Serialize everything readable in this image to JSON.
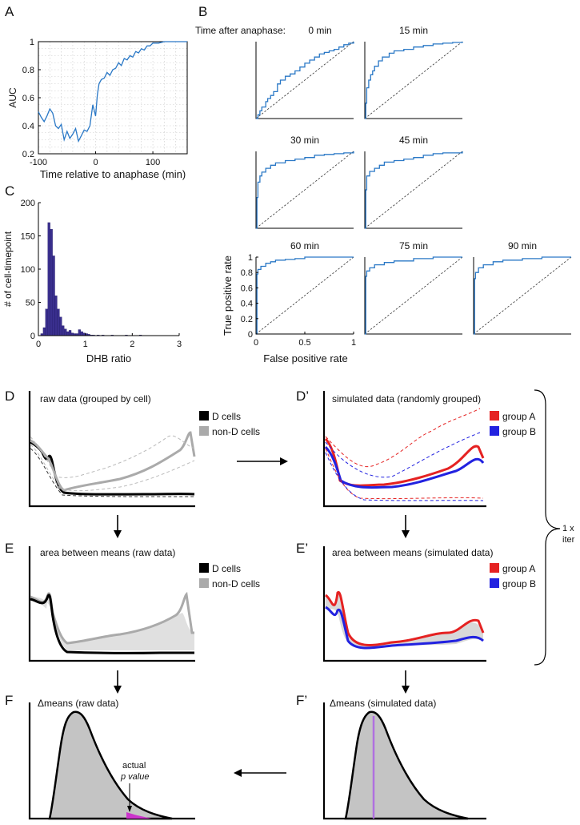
{
  "panel_labels": {
    "A": "A",
    "B": "B",
    "C": "C",
    "D": "D",
    "D2": "D’",
    "E": "E",
    "E2": "E’",
    "F": "F",
    "F2": "F’"
  },
  "colors": {
    "roc": "#2a78c6",
    "hist": "#3a2f8e",
    "red": "#e52222",
    "blue": "#2222e0",
    "gray": "#aaaaaa",
    "black": "#000000",
    "fill_gray": "#c4c4c4",
    "magenta": "#cc33cc",
    "purple": "#b070e0"
  },
  "chart_data": [
    {
      "id": "A",
      "type": "line",
      "xlabel": "Time relative to anaphase (min)",
      "ylabel": "AUC",
      "xlim": [
        -100,
        160
      ],
      "ylim": [
        0.2,
        1
      ],
      "xticks": [
        "-100",
        "0",
        "100"
      ],
      "yticks": [
        "0.2",
        "0.4",
        "0.6",
        "0.8",
        "1"
      ],
      "grid": true,
      "series": [
        {
          "x": [
            -100,
            -95,
            -90,
            -85,
            -80,
            -75,
            -70,
            -65,
            -60,
            -55,
            -50,
            -45,
            -40,
            -35,
            -30,
            -25,
            -20,
            -15,
            -10,
            -5,
            0,
            3,
            6,
            10,
            15,
            20,
            25,
            30,
            35,
            40,
            45,
            50,
            55,
            60,
            65,
            70,
            75,
            80,
            85,
            90,
            95,
            100,
            110,
            120,
            130,
            140,
            150,
            160
          ],
          "y": [
            0.5,
            0.46,
            0.43,
            0.47,
            0.52,
            0.49,
            0.4,
            0.38,
            0.41,
            0.3,
            0.36,
            0.31,
            0.34,
            0.38,
            0.29,
            0.33,
            0.37,
            0.36,
            0.4,
            0.55,
            0.47,
            0.62,
            0.7,
            0.73,
            0.74,
            0.78,
            0.76,
            0.8,
            0.81,
            0.85,
            0.83,
            0.88,
            0.87,
            0.9,
            0.89,
            0.93,
            0.92,
            0.95,
            0.94,
            0.97,
            0.97,
            0.99,
            0.99,
            1,
            1,
            1,
            1,
            1
          ]
        }
      ]
    },
    {
      "id": "B",
      "type": "line",
      "title_prefix": "Time after anaphase:",
      "xlabel": "False positive rate",
      "ylabel": "True positive rate",
      "xlim": [
        0,
        1
      ],
      "ylim": [
        0,
        1
      ],
      "xticks": [
        "0",
        "0.5",
        "1"
      ],
      "yticks": [
        "0",
        "0.2",
        "0.4",
        "0.6",
        "0.8",
        "1"
      ],
      "panels": [
        {
          "title": "0 min",
          "x": [
            0,
            0.02,
            0.04,
            0.06,
            0.1,
            0.12,
            0.15,
            0.18,
            0.22,
            0.25,
            0.3,
            0.35,
            0.4,
            0.45,
            0.5,
            0.55,
            0.6,
            0.65,
            0.7,
            0.75,
            0.8,
            0.85,
            0.9,
            0.95,
            1
          ],
          "y": [
            0,
            0.05,
            0.1,
            0.15,
            0.22,
            0.26,
            0.3,
            0.35,
            0.45,
            0.5,
            0.55,
            0.58,
            0.62,
            0.67,
            0.72,
            0.76,
            0.8,
            0.84,
            0.86,
            0.88,
            0.9,
            0.93,
            0.96,
            0.98,
            1
          ]
        },
        {
          "title": "15 min",
          "x": [
            0,
            0.01,
            0.02,
            0.04,
            0.06,
            0.08,
            0.1,
            0.14,
            0.18,
            0.25,
            0.3,
            0.4,
            0.5,
            0.6,
            0.7,
            0.8,
            0.9,
            1
          ],
          "y": [
            0,
            0.2,
            0.4,
            0.5,
            0.57,
            0.62,
            0.68,
            0.75,
            0.8,
            0.85,
            0.88,
            0.9,
            0.93,
            0.95,
            0.97,
            0.98,
            0.99,
            1
          ]
        },
        {
          "title": "30 min",
          "x": [
            0,
            0.01,
            0.02,
            0.04,
            0.06,
            0.1,
            0.15,
            0.2,
            0.3,
            0.4,
            0.5,
            0.6,
            0.7,
            0.8,
            0.9,
            1
          ],
          "y": [
            0,
            0.4,
            0.6,
            0.68,
            0.73,
            0.78,
            0.82,
            0.85,
            0.88,
            0.9,
            0.92,
            0.95,
            0.96,
            0.97,
            0.98,
            1
          ]
        },
        {
          "title": "45 min",
          "x": [
            0,
            0.01,
            0.02,
            0.05,
            0.1,
            0.15,
            0.2,
            0.3,
            0.4,
            0.5,
            0.6,
            0.7,
            0.8,
            0.9,
            1
          ],
          "y": [
            0,
            0.5,
            0.68,
            0.74,
            0.78,
            0.82,
            0.86,
            0.88,
            0.9,
            0.92,
            0.95,
            0.97,
            0.98,
            0.98,
            1
          ]
        },
        {
          "title": "60 min",
          "x": [
            0,
            0.01,
            0.02,
            0.05,
            0.1,
            0.15,
            0.2,
            0.3,
            0.4,
            0.5,
            0.7,
            1
          ],
          "y": [
            0,
            0.78,
            0.84,
            0.88,
            0.92,
            0.94,
            0.96,
            0.97,
            0.98,
            1,
            1,
            1
          ]
        },
        {
          "title": "75 min",
          "x": [
            0,
            0.01,
            0.02,
            0.05,
            0.1,
            0.2,
            0.3,
            0.5,
            0.7,
            1
          ],
          "y": [
            0,
            0.75,
            0.82,
            0.86,
            0.9,
            0.93,
            0.95,
            0.98,
            1,
            1
          ]
        },
        {
          "title": "90 min",
          "x": [
            0,
            0.01,
            0.02,
            0.05,
            0.1,
            0.2,
            0.3,
            0.5,
            0.7,
            1
          ],
          "y": [
            0,
            0.72,
            0.8,
            0.86,
            0.9,
            0.94,
            0.96,
            0.98,
            1,
            1
          ]
        }
      ]
    },
    {
      "id": "C",
      "type": "bar",
      "xlabel": "DHB ratio",
      "ylabel": "# of cell-timepoint",
      "xlim": [
        0,
        3
      ],
      "ylim": [
        0,
        200
      ],
      "xticks": [
        "0",
        "1",
        "2",
        "3"
      ],
      "yticks": [
        "0",
        "50",
        "100",
        "150",
        "200"
      ],
      "bin_width": 0.05,
      "bin_start": 0.05,
      "values": [
        3,
        12,
        40,
        170,
        160,
        120,
        60,
        40,
        28,
        15,
        10,
        6,
        8,
        4,
        3,
        3,
        9,
        6,
        4,
        3,
        2,
        1,
        1,
        0,
        1,
        0,
        1,
        0,
        0,
        0,
        1,
        0,
        0,
        0,
        0,
        0,
        1,
        0,
        0,
        0,
        0,
        0,
        1
      ]
    }
  ],
  "D": {
    "title": "raw data (grouped by cell)",
    "legend": [
      "D cells",
      "non-D cells"
    ]
  },
  "D2": {
    "title": "simulated data (randomly grouped)",
    "legend": [
      "group A",
      "group B"
    ]
  },
  "E": {
    "title": "area between means (raw data)",
    "legend": [
      "D cells",
      "non-D cells"
    ]
  },
  "E2": {
    "title": "area between means (simulated data)",
    "legend": [
      "group A",
      "group B"
    ]
  },
  "F": {
    "title": "Δmeans (raw data)",
    "annotation_line1": "actual",
    "annotation_line2": "p value"
  },
  "F2": {
    "title": "Δmeans (simulated data)"
  },
  "brace_label_1": "1 x",
  "brace_label_2": "iter"
}
